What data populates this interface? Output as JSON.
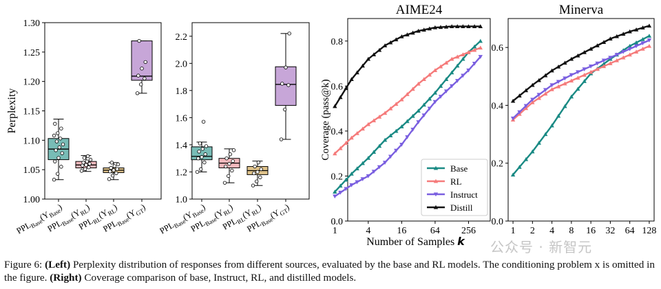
{
  "caption": {
    "fig_label": "Figure 6:",
    "left_label": "(Left)",
    "left_text": "Perplexity distribution of responses from different sources, evaluated by the base and RL models. The conditioning problem x is omitted in the figure.",
    "right_label": "(Right)",
    "right_text": "Coverage comparison of base, Instruct, RL, and distilled models."
  },
  "watermark": "公众号 · 新智元",
  "colors": {
    "base": "#1a8a84",
    "rl": "#f57b7b",
    "instruct": "#7a5fe0",
    "distill": "#111111",
    "box_base": "#78bcb6",
    "box_rl_base": "#f3b9bd",
    "box_rl_rl": "#e1c48c",
    "box_gt": "#c7a6d8"
  },
  "chart_data": [
    {
      "type": "box",
      "title": "",
      "ylabel": "Perplexity",
      "ylim": [
        1.0,
        1.3
      ],
      "yticks": [
        "1.00",
        "1.05",
        "1.10",
        "1.15",
        "1.20",
        "1.25",
        "1.30"
      ],
      "categories": [
        "PPL_Base(Y_Base)",
        "PPL_Base(Y_RL)",
        "PPL_RL(Y_RL)",
        "PPL_Base(Y_GT)"
      ],
      "boxes": [
        {
          "q1": 1.067,
          "median": 1.085,
          "q3": 1.103,
          "whisker_low": 1.033,
          "whisker_high": 1.136,
          "points": [
            1.033,
            1.043,
            1.055,
            1.064,
            1.07,
            1.078,
            1.083,
            1.088,
            1.093,
            1.098,
            1.103,
            1.108,
            1.112,
            1.12,
            1.128
          ]
        },
        {
          "q1": 1.053,
          "median": 1.058,
          "q3": 1.064,
          "whisker_low": 1.047,
          "whisker_high": 1.074,
          "points": [
            1.048,
            1.051,
            1.054,
            1.057,
            1.058,
            1.06,
            1.062,
            1.064,
            1.067,
            1.07,
            1.073
          ]
        },
        {
          "q1": 1.045,
          "median": 1.049,
          "q3": 1.053,
          "whisker_low": 1.033,
          "whisker_high": 1.062,
          "points": [
            1.034,
            1.04,
            1.044,
            1.047,
            1.049,
            1.051,
            1.053,
            1.056,
            1.059,
            1.062
          ]
        },
        {
          "q1": 1.202,
          "median": 1.209,
          "q3": 1.269,
          "whisker_low": 1.18,
          "whisker_high": 1.269,
          "points": [
            1.18,
            1.195,
            1.205,
            1.21,
            1.222,
            1.233,
            1.269
          ]
        }
      ]
    },
    {
      "type": "box",
      "title": "",
      "ylabel": "",
      "ylim": [
        1.0,
        2.3
      ],
      "yticks": [
        "1.0",
        "1.2",
        "1.4",
        "1.6",
        "1.8",
        "2.0",
        "2.2"
      ],
      "categories": [
        "PPL_Base(Y_Base)",
        "PPL_Base(Y_RL)",
        "PPL_RL(Y_RL)",
        "PPL_Base(Y_GT)"
      ],
      "boxes": [
        {
          "q1": 1.29,
          "median": 1.315,
          "q3": 1.385,
          "whisker_low": 1.2,
          "whisker_high": 1.42,
          "points": [
            1.2,
            1.22,
            1.27,
            1.3,
            1.31,
            1.33,
            1.35,
            1.37,
            1.39,
            1.41,
            1.57
          ]
        },
        {
          "q1": 1.23,
          "median": 1.265,
          "q3": 1.3,
          "whisker_low": 1.12,
          "whisker_high": 1.37,
          "points": [
            1.12,
            1.17,
            1.21,
            1.24,
            1.26,
            1.28,
            1.3,
            1.33,
            1.36
          ]
        },
        {
          "q1": 1.18,
          "median": 1.21,
          "q3": 1.24,
          "whisker_low": 1.1,
          "whisker_high": 1.28,
          "points": [
            1.1,
            1.13,
            1.16,
            1.19,
            1.2,
            1.22,
            1.24,
            1.27
          ]
        },
        {
          "q1": 1.69,
          "median": 1.845,
          "q3": 1.975,
          "whisker_low": 1.44,
          "whisker_high": 2.22,
          "points": [
            1.44,
            1.66,
            1.84,
            1.85,
            1.97,
            2.22
          ]
        }
      ]
    },
    {
      "type": "line",
      "title": "AIME24",
      "xlabel": "Number of Samples k",
      "ylabel": "Coverage (pass@k)",
      "xscale": "log2",
      "x_range": [
        1,
        512
      ],
      "ylim": [
        0,
        0.9
      ],
      "xticks": [
        "1",
        "4",
        "16",
        "64",
        "256"
      ],
      "yticks": [
        "0.0",
        "0.2",
        "0.4",
        "0.6",
        "0.8"
      ],
      "legend": "lower-right",
      "series": [
        {
          "name": "Base",
          "points": [
            [
              1,
              0.13
            ],
            [
              2,
              0.21
            ],
            [
              4,
              0.28
            ],
            [
              8,
              0.36
            ],
            [
              16,
              0.42
            ],
            [
              32,
              0.49
            ],
            [
              64,
              0.57
            ],
            [
              128,
              0.66
            ],
            [
              256,
              0.75
            ],
            [
              420,
              0.8
            ]
          ]
        },
        {
          "name": "RL",
          "points": [
            [
              1,
              0.3
            ],
            [
              2,
              0.37
            ],
            [
              4,
              0.43
            ],
            [
              8,
              0.48
            ],
            [
              16,
              0.54
            ],
            [
              32,
              0.61
            ],
            [
              64,
              0.67
            ],
            [
              128,
              0.72
            ],
            [
              256,
              0.75
            ],
            [
              420,
              0.77
            ]
          ]
        },
        {
          "name": "Instruct",
          "points": [
            [
              1,
              0.11
            ],
            [
              2,
              0.16
            ],
            [
              4,
              0.2
            ],
            [
              8,
              0.26
            ],
            [
              16,
              0.34
            ],
            [
              32,
              0.44
            ],
            [
              64,
              0.53
            ],
            [
              128,
              0.6
            ],
            [
              256,
              0.67
            ],
            [
              420,
              0.73
            ]
          ]
        },
        {
          "name": "Distill",
          "points": [
            [
              1,
              0.51
            ],
            [
              2,
              0.63
            ],
            [
              4,
              0.72
            ],
            [
              8,
              0.78
            ],
            [
              16,
              0.82
            ],
            [
              32,
              0.845
            ],
            [
              64,
              0.86
            ],
            [
              128,
              0.865
            ],
            [
              256,
              0.865
            ],
            [
              420,
              0.865
            ]
          ]
        }
      ]
    },
    {
      "type": "line",
      "title": "Minerva",
      "xlabel": "",
      "ylabel": "",
      "xscale": "log2",
      "x_range": [
        1,
        128
      ],
      "ylim": [
        0.0,
        0.7
      ],
      "xticks": [
        "1",
        "2",
        "4",
        "8",
        "16",
        "32",
        "64",
        "128"
      ],
      "yticks": [
        "0.0",
        "0.2",
        "0.4",
        "0.6"
      ],
      "series": [
        {
          "name": "Base",
          "points": [
            [
              1,
              0.16
            ],
            [
              2,
              0.24
            ],
            [
              4,
              0.33
            ],
            [
              8,
              0.43
            ],
            [
              16,
              0.51
            ],
            [
              32,
              0.56
            ],
            [
              64,
              0.605
            ],
            [
              128,
              0.64
            ]
          ]
        },
        {
          "name": "RL",
          "points": [
            [
              1,
              0.35
            ],
            [
              2,
              0.41
            ],
            [
              4,
              0.455
            ],
            [
              8,
              0.485
            ],
            [
              16,
              0.515
            ],
            [
              32,
              0.545
            ],
            [
              64,
              0.575
            ],
            [
              128,
              0.605
            ]
          ]
        },
        {
          "name": "Instruct",
          "points": [
            [
              1,
              0.355
            ],
            [
              2,
              0.42
            ],
            [
              4,
              0.47
            ],
            [
              8,
              0.505
            ],
            [
              16,
              0.535
            ],
            [
              32,
              0.565
            ],
            [
              64,
              0.595
            ],
            [
              128,
              0.625
            ]
          ]
        },
        {
          "name": "Distill",
          "points": [
            [
              1,
              0.415
            ],
            [
              2,
              0.47
            ],
            [
              4,
              0.52
            ],
            [
              8,
              0.56
            ],
            [
              16,
              0.595
            ],
            [
              32,
              0.63
            ],
            [
              64,
              0.655
            ],
            [
              128,
              0.675
            ]
          ]
        }
      ]
    }
  ]
}
